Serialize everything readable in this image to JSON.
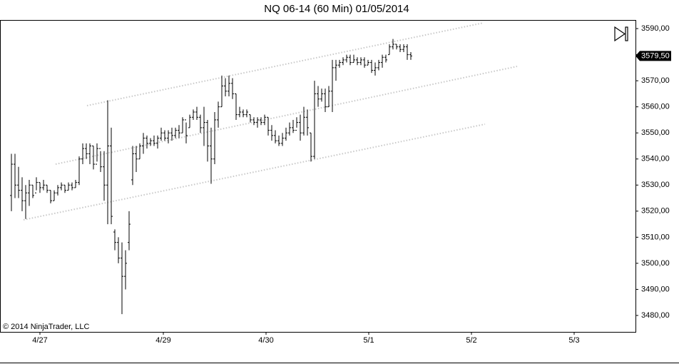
{
  "chart_data": {
    "type": "ohlc",
    "title": "NQ 06-14 (60 Min)  01/05/2014",
    "copyright": "© 2014 NinjaTrader, LLC",
    "color": "#000000",
    "x": [
      0,
      1,
      2,
      3,
      4,
      5,
      6,
      7,
      8,
      9,
      10,
      11,
      12,
      13,
      14,
      15,
      16,
      17,
      18,
      19,
      20,
      21,
      22,
      23,
      24,
      25,
      26,
      27,
      28,
      29,
      30,
      31,
      32,
      33,
      34,
      35,
      36,
      37,
      38,
      39,
      40,
      41,
      42,
      43,
      44,
      45,
      46,
      47,
      48,
      49,
      50,
      51,
      52,
      53,
      54,
      55,
      56,
      57,
      58,
      59,
      60,
      61,
      62,
      63,
      64,
      65,
      66,
      67,
      68,
      69,
      70,
      71,
      72,
      73,
      74,
      75,
      76,
      77,
      78,
      79,
      80,
      81,
      82,
      83,
      84,
      85,
      86,
      87,
      88,
      89,
      90,
      91,
      92,
      93,
      94,
      95,
      96,
      97,
      98,
      99,
      100,
      101,
      102,
      103,
      104,
      105,
      106,
      107,
      108,
      109,
      110,
      111,
      112
    ],
    "open": [
      3526,
      3538,
      3530,
      3528,
      3524,
      3527,
      3530,
      3527,
      3531,
      3529,
      3530,
      3528,
      3524,
      3527,
      3529,
      3530,
      3528,
      3530,
      3529,
      3531,
      3540,
      3544,
      3542,
      3545,
      3538,
      3544,
      3537,
      3530,
      3545,
      3512,
      3508,
      3502,
      3495,
      3508,
      3532,
      3542,
      3540,
      3545,
      3548,
      3546,
      3547,
      3546,
      3548,
      3550,
      3548,
      3550,
      3549,
      3551,
      3550,
      3555,
      3552,
      3556,
      3558,
      3556,
      3552,
      3554,
      3545,
      3540,
      3555,
      3560,
      3568,
      3566,
      3569,
      3565,
      3557,
      3558,
      3557,
      3557,
      3555,
      3554,
      3555,
      3554,
      3556,
      3551,
      3549,
      3547,
      3546,
      3548,
      3550,
      3552,
      3551,
      3554,
      3550,
      3556,
      3550,
      3541,
      3565,
      3563,
      3565,
      3560,
      3566,
      3575,
      3576,
      3577,
      3578,
      3579,
      3577,
      3578,
      3577,
      3578,
      3576,
      3577,
      3574,
      3575,
      3577,
      3579,
      3580,
      3583,
      3584,
      3583,
      3582,
      3583,
      3580
    ],
    "high": [
      3542,
      3542,
      3537,
      3533,
      3530,
      3532,
      3530,
      3533,
      3531,
      3532,
      3530,
      3528,
      3528,
      3530,
      3531,
      3530,
      3531,
      3531,
      3532,
      3541,
      3546,
      3546,
      3546,
      3545,
      3546,
      3543,
      3543,
      3562.5,
      3552,
      3513,
      3510,
      3508,
      3505,
      3520,
      3545,
      3545,
      3546,
      3550,
      3549,
      3548,
      3549,
      3549,
      3552,
      3551,
      3551,
      3552,
      3552,
      3553,
      3556,
      3554,
      3557,
      3559,
      3560,
      3557,
      3560,
      3555,
      3552,
      3558,
      3562,
      3572,
      3571,
      3572,
      3571,
      3565,
      3560,
      3559,
      3559,
      3557,
      3556,
      3556,
      3556,
      3557,
      3556,
      3553,
      3551,
      3549,
      3550,
      3552,
      3554,
      3555,
      3556,
      3557,
      3560,
      3559,
      3550,
      3570,
      3568,
      3567,
      3567,
      3568,
      3578,
      3578,
      3578,
      3579,
      3580,
      3580,
      3580,
      3579,
      3579,
      3579,
      3578,
      3578,
      3577,
      3578,
      3580,
      3580,
      3584,
      3586,
      3584,
      3584,
      3584,
      3584,
      3581
    ],
    "low": [
      3520,
      3525,
      3525,
      3520,
      3517,
      3522,
      3525,
      3528,
      3527,
      3528,
      3527,
      3523,
      3524,
      3526,
      3528,
      3527,
      3528,
      3528,
      3529,
      3530,
      3538,
      3540,
      3538,
      3536,
      3539,
      3535,
      3524,
      3515,
      3515,
      3505,
      3500,
      3480.5,
      3490,
      3505,
      3530,
      3535,
      3540,
      3542,
      3544,
      3545,
      3545,
      3544,
      3547,
      3547,
      3546,
      3547,
      3548,
      3548,
      3550,
      3546,
      3552,
      3555,
      3555,
      3550,
      3545,
      3539,
      3530.5,
      3538,
      3552,
      3560,
      3564,
      3564,
      3563,
      3555,
      3556,
      3556,
      3556,
      3554,
      3553,
      3552,
      3553,
      3553,
      3549,
      3547,
      3546,
      3545,
      3545,
      3547,
      3549,
      3550,
      3552,
      3547,
      3549,
      3549,
      3539,
      3540,
      3560,
      3562,
      3558,
      3560,
      3558,
      3570,
      3575,
      3576,
      3577,
      3576,
      3577,
      3576,
      3576,
      3575,
      3576,
      3573,
      3572,
      3574,
      3575,
      3577,
      3580,
      3582,
      3582,
      3581,
      3581,
      3578,
      3578
    ],
    "close": [
      3538,
      3530,
      3528,
      3524,
      3527,
      3530,
      3526,
      3531,
      3529,
      3530,
      3528,
      3524,
      3527,
      3529,
      3530,
      3528,
      3530,
      3529,
      3531,
      3540,
      3544,
      3542,
      3545,
      3538,
      3544,
      3537,
      3530,
      3545,
      3518,
      3508,
      3502,
      3495,
      3500,
      3515,
      3542,
      3540,
      3545,
      3548,
      3546,
      3547,
      3546,
      3548,
      3550,
      3548,
      3550,
      3549,
      3551,
      3550,
      3555,
      3549,
      3556,
      3558,
      3556,
      3552,
      3554,
      3545,
      3540,
      3555,
      3560,
      3568,
      3566,
      3569,
      3565,
      3557,
      3558,
      3557,
      3558,
      3555,
      3554,
      3555,
      3554,
      3556,
      3551,
      3549,
      3547,
      3546,
      3548,
      3550,
      3552,
      3551,
      3554,
      3550,
      3556,
      3552,
      3541,
      3565,
      3563,
      3565,
      3560,
      3566,
      3575,
      3576,
      3577,
      3578,
      3579,
      3577,
      3578,
      3577,
      3578,
      3576,
      3577,
      3574,
      3575,
      3577,
      3579,
      3578,
      3583,
      3584,
      3583,
      3582,
      3583,
      3580,
      3579.5
    ],
    "last_price": {
      "value": 3579.5,
      "label": "3579,50"
    },
    "xlim": [
      -3.2,
      175
    ],
    "xticks": [
      {
        "value": 8,
        "label": "4/27"
      },
      {
        "value": 42.6,
        "label": "4/29"
      },
      {
        "value": 71.4,
        "label": "4/30"
      },
      {
        "value": 100.2,
        "label": "5/1"
      },
      {
        "value": 129,
        "label": "5/2"
      },
      {
        "value": 157.8,
        "label": "5/3"
      }
    ],
    "ylim": [
      3473.7,
      3593.3
    ],
    "yticks": [
      {
        "value": 3480,
        "label": "3480,00"
      },
      {
        "value": 3490,
        "label": "3490,00"
      },
      {
        "value": 3500,
        "label": "3500,00"
      },
      {
        "value": 3510,
        "label": "3510,00"
      },
      {
        "value": 3520,
        "label": "3520,00"
      },
      {
        "value": 3530,
        "label": "3530,00"
      },
      {
        "value": 3540,
        "label": "3540,00"
      },
      {
        "value": 3550,
        "label": "3550,00"
      },
      {
        "value": 3560,
        "label": "3560,00"
      },
      {
        "value": 3570,
        "label": "3570,00"
      },
      {
        "value": 3580,
        "label": "3580,00"
      },
      {
        "value": 3590,
        "label": "3590,00"
      }
    ]
  }
}
